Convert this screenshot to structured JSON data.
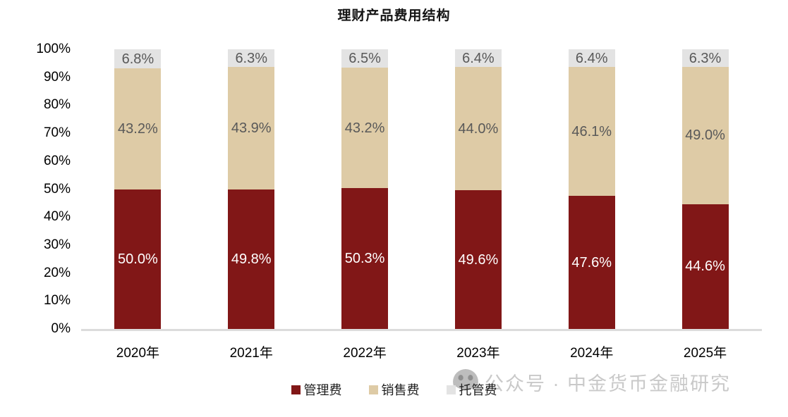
{
  "title": "理财产品费用结构",
  "watermark": {
    "text": "公众号 · 中金货币金融研究",
    "icon": "wechat-face-icon"
  },
  "chart_data": {
    "type": "bar",
    "stacked": true,
    "stack_unit": "percent",
    "title": "理财产品费用结构",
    "categories": [
      "2020年",
      "2021年",
      "2022年",
      "2023年",
      "2024年",
      "2025年"
    ],
    "series": [
      {
        "key": "management-fee",
        "name": "管理费",
        "color": "#811717",
        "label_color": "#FFFFFF",
        "values": [
          50.0,
          49.8,
          50.3,
          49.6,
          47.6,
          44.6
        ]
      },
      {
        "key": "sales-fee",
        "name": "销售费",
        "color": "#DECBA6",
        "label_color": "#595959",
        "values": [
          43.2,
          43.9,
          43.2,
          44.0,
          46.1,
          49.0
        ]
      },
      {
        "key": "custody-fee",
        "name": "托管费",
        "color": "#E3E3E3",
        "label_color": "#595959",
        "values": [
          6.8,
          6.3,
          6.5,
          6.4,
          6.4,
          6.3
        ]
      }
    ],
    "xlabel": "",
    "ylabel": "",
    "ylim": [
      0,
      100
    ],
    "yticks": [
      "100%",
      "90%",
      "80%",
      "70%",
      "60%",
      "50%",
      "40%",
      "30%",
      "20%",
      "10%",
      "0%"
    ],
    "grid": false,
    "legend_position": "bottom",
    "axis_line_color": "#DCDCDC"
  }
}
